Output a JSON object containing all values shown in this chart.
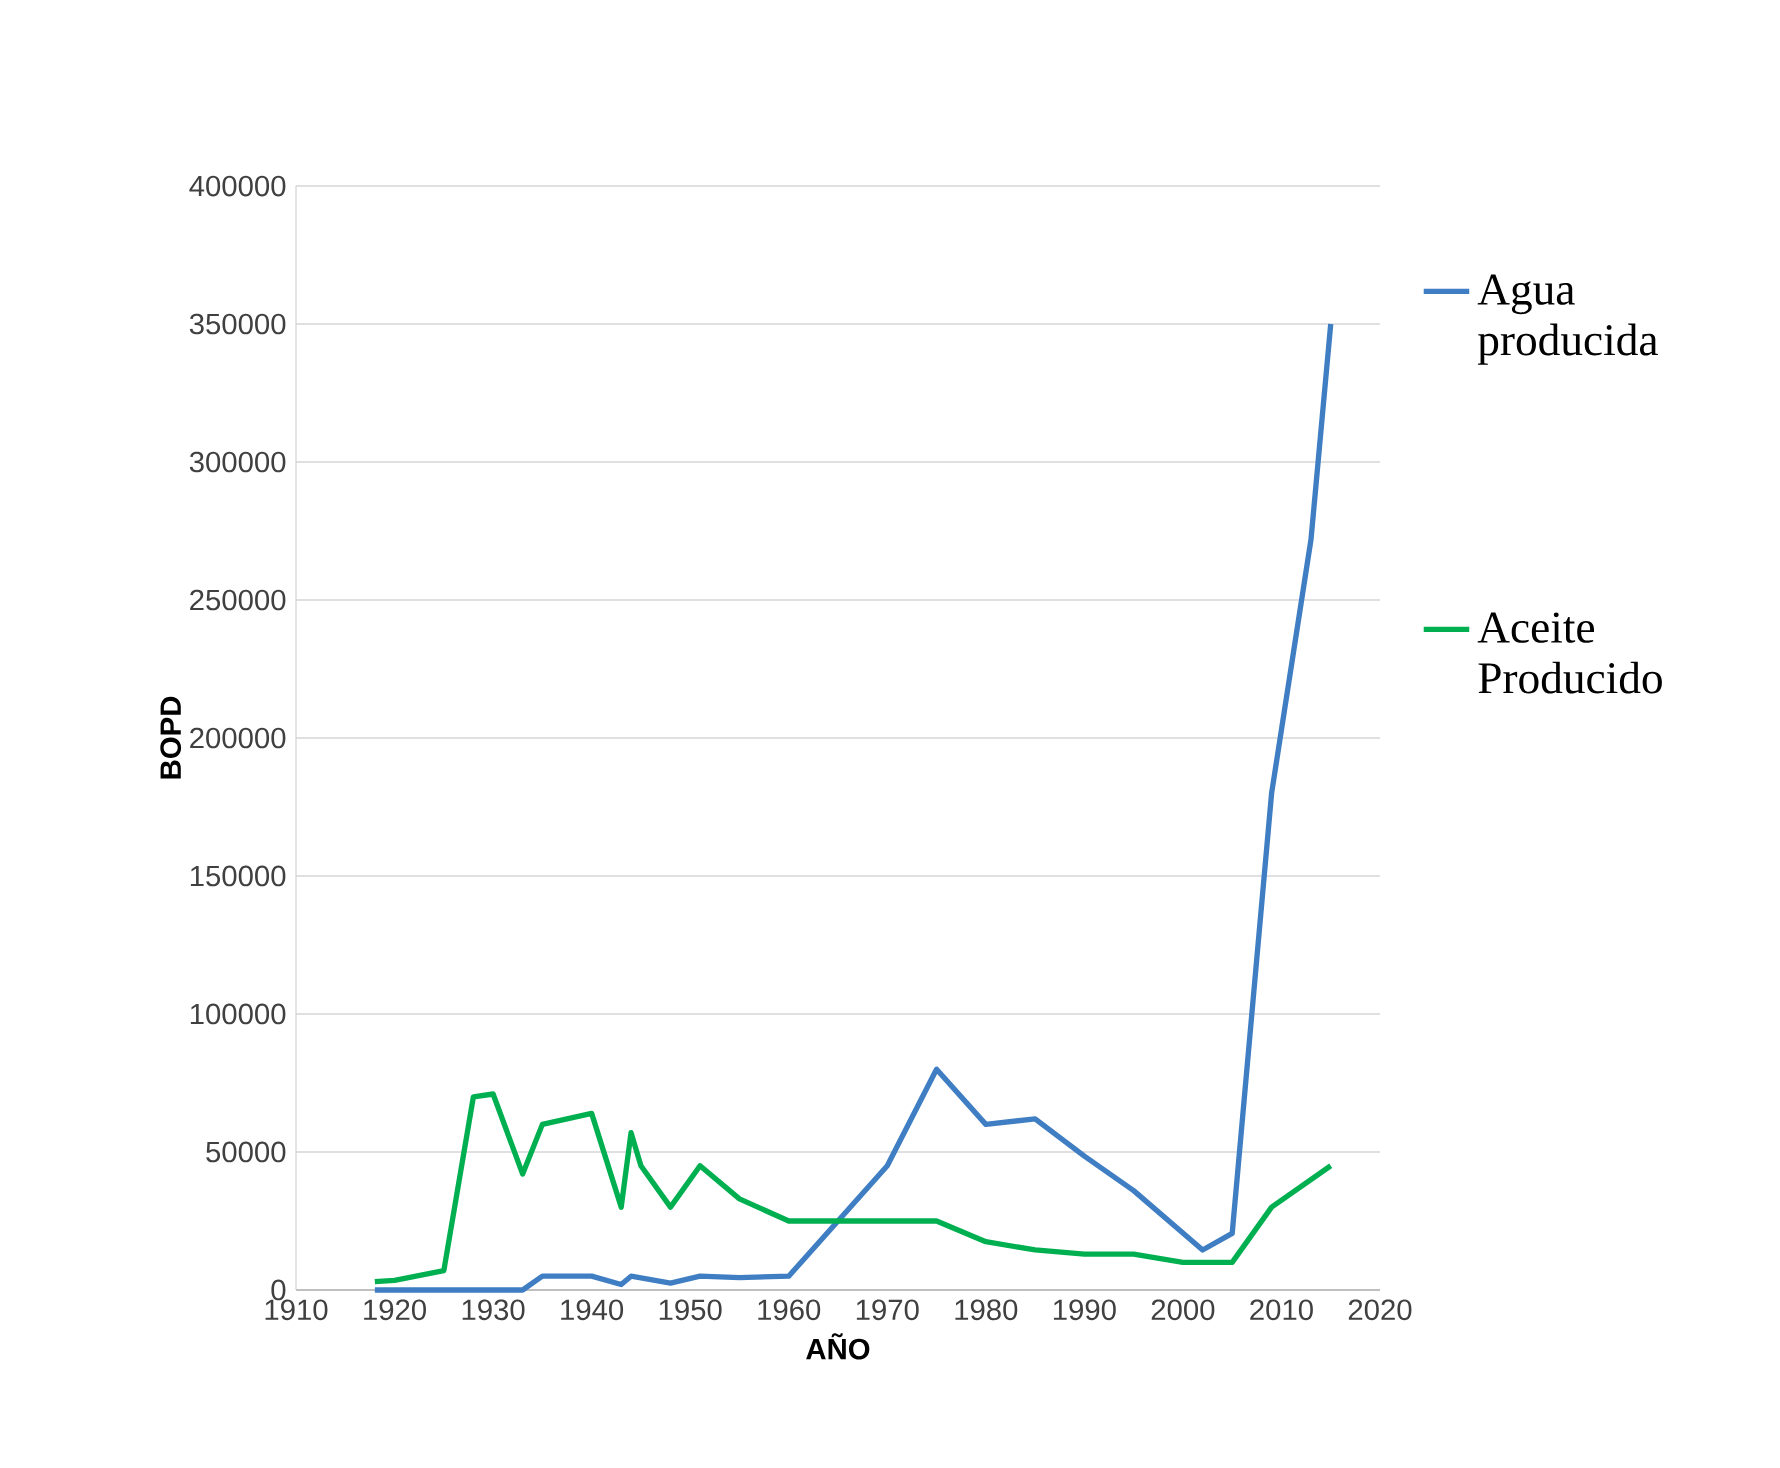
{
  "chart_data": {
    "type": "line",
    "xlabel": "AÑO",
    "ylabel": "BOPD",
    "xlim": [
      1910,
      2020
    ],
    "xticks": [
      1910,
      1920,
      1930,
      1940,
      1950,
      1960,
      1970,
      1980,
      1990,
      2000,
      2010,
      2020
    ],
    "ylim": [
      0,
      400000
    ],
    "yticks": [
      0,
      50000,
      100000,
      150000,
      200000,
      250000,
      300000,
      350000,
      400000
    ],
    "grid": "y",
    "legend": "right",
    "marker": "none",
    "line_style": "solid",
    "series": [
      {
        "name": "Agua producida",
        "color": "#3f7ec3",
        "x": [
          1918,
          1933,
          1935,
          1940,
          1943,
          1944,
          1948,
          1951,
          1955,
          1960,
          1970,
          1975,
          1980,
          1985,
          1990,
          1995,
          2002,
          2005,
          2009,
          2013,
          2015
        ],
        "values": [
          0,
          0,
          5000,
          5000,
          2000,
          5000,
          2500,
          5000,
          4500,
          5000,
          45000,
          80000,
          60000,
          62000,
          48500,
          36000,
          14500,
          20500,
          180000,
          272000,
          350000
        ]
      },
      {
        "name": "Aceite Producido",
        "color": "#00b050",
        "x": [
          1918,
          1920,
          1925,
          1928,
          1930,
          1933,
          1935,
          1940,
          1943,
          1944,
          1945,
          1948,
          1951,
          1955,
          1960,
          1975,
          1980,
          1985,
          1990,
          1995,
          2000,
          2005,
          2009,
          2015
        ],
        "values": [
          3000,
          3500,
          7000,
          70000,
          71000,
          42000,
          60000,
          64000,
          30000,
          57000,
          45000,
          30000,
          45000,
          33000,
          25000,
          25000,
          17500,
          14500,
          13000,
          13000,
          10000,
          10000,
          30000,
          45000
        ]
      }
    ]
  }
}
